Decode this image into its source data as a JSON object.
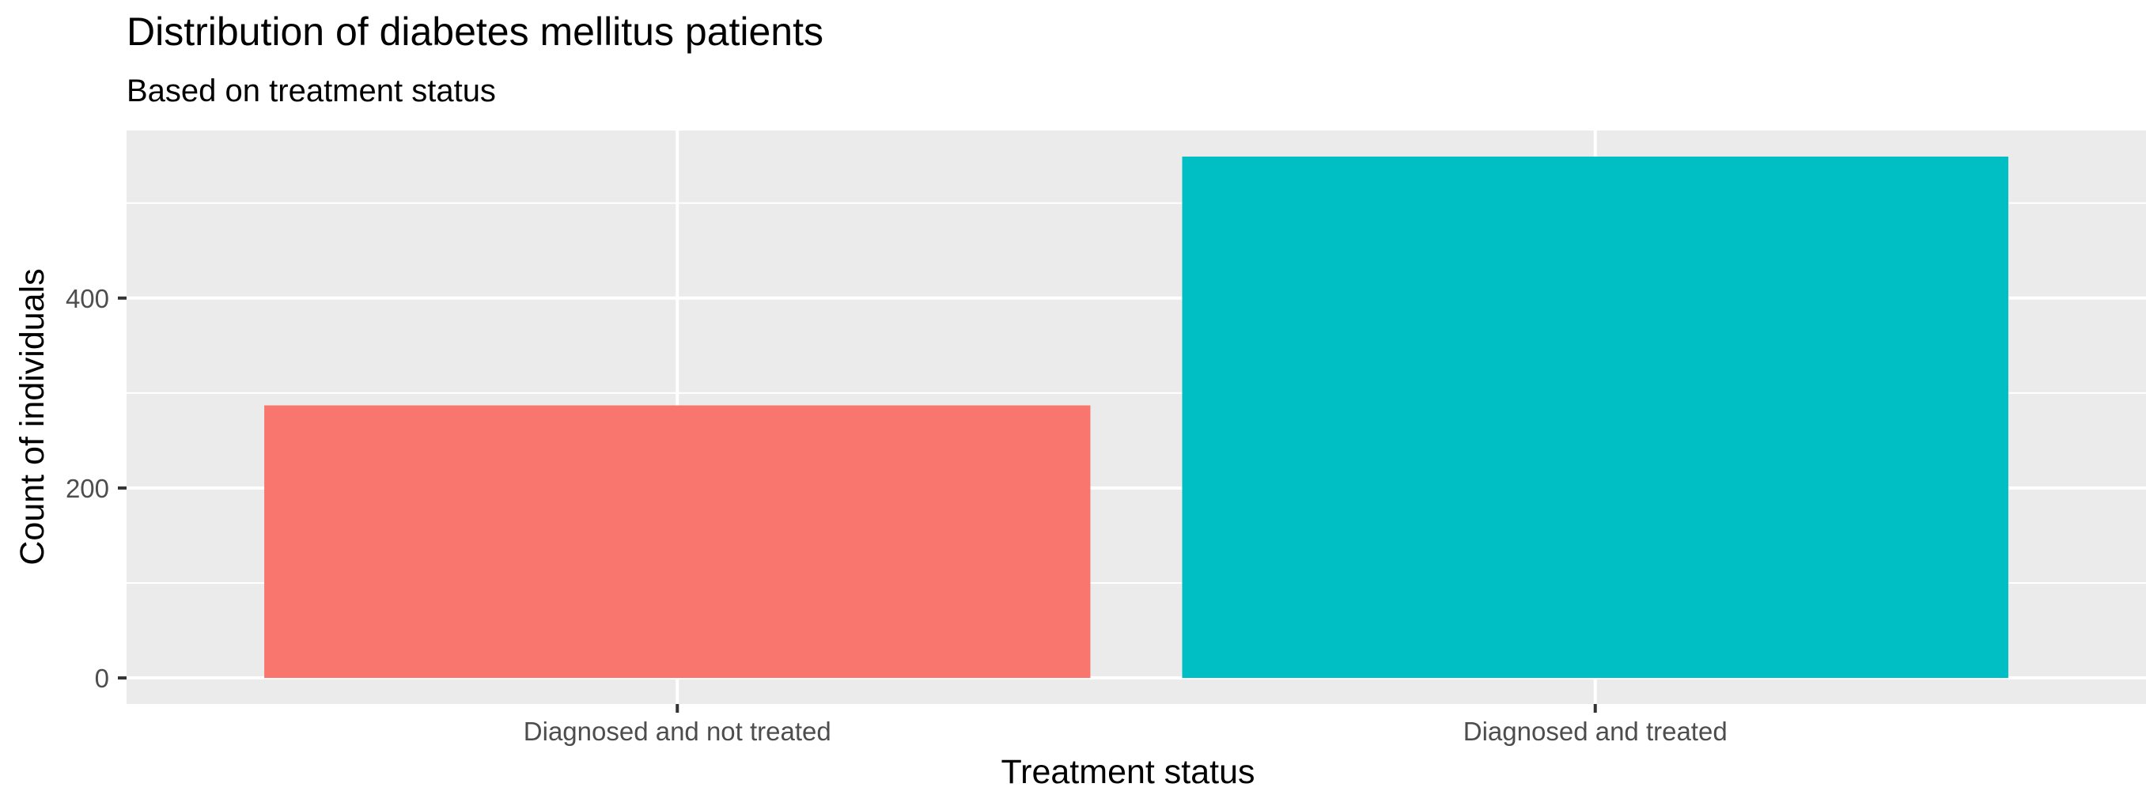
{
  "chart_data": {
    "type": "bar",
    "title": "Distribution of diabetes mellitus patients",
    "subtitle": "Based on treatment status",
    "xlabel": "Treatment status",
    "ylabel": "Count of individuals",
    "categories": [
      "Diagnosed and not treated",
      "Diagnosed and treated"
    ],
    "values": [
      287,
      549
    ],
    "colors": [
      "#F8766D",
      "#00BFC4"
    ],
    "ylim": [
      -27.45,
      576.45
    ],
    "yticks": [
      0,
      200,
      400
    ],
    "ytick_labels": [
      "0",
      "200",
      "400"
    ],
    "grid": true,
    "legend": "none",
    "panel_background": "#EBEBEB",
    "gridline_color": "#FFFFFF"
  }
}
